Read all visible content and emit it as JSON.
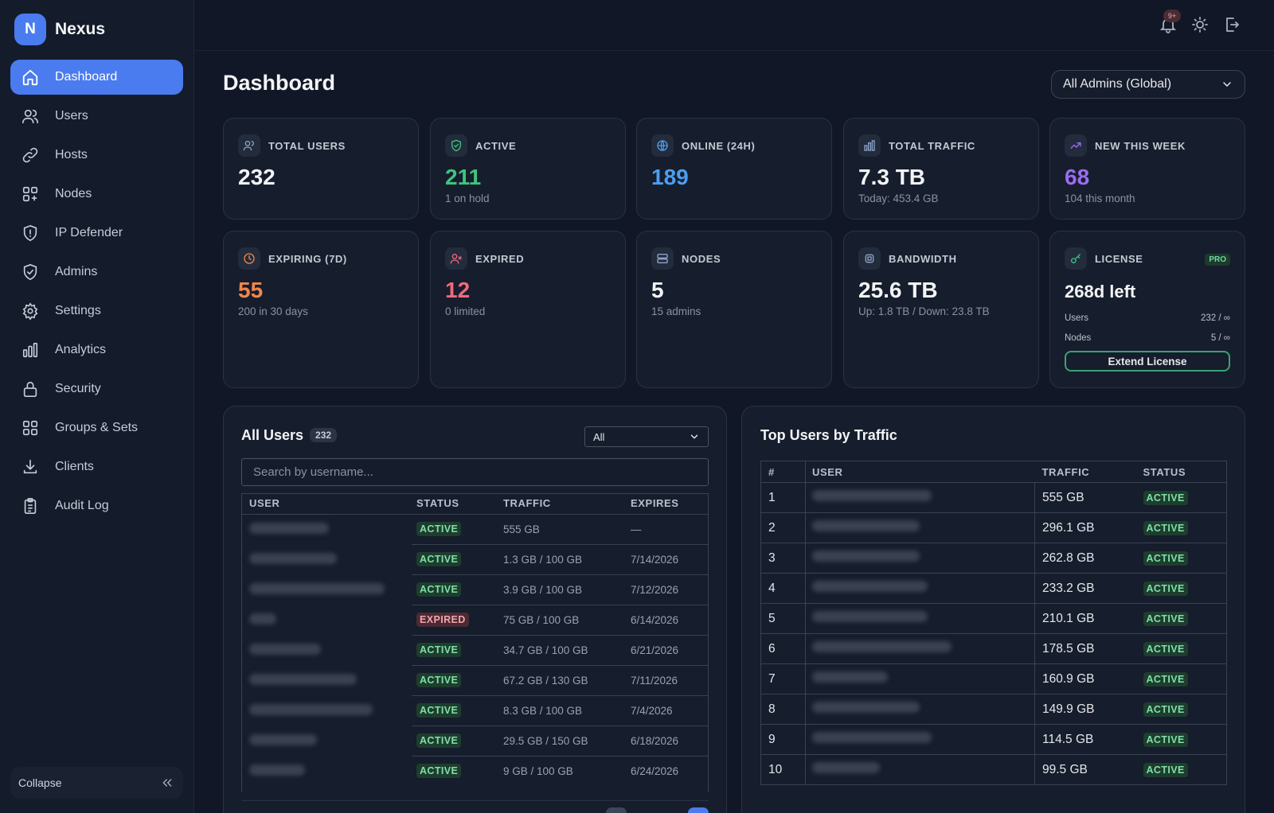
{
  "brand": {
    "initial": "N",
    "name": "Nexus"
  },
  "sidebar": {
    "items": [
      {
        "label": "Dashboard",
        "icon": "home-icon",
        "active": true
      },
      {
        "label": "Users",
        "icon": "users-icon"
      },
      {
        "label": "Hosts",
        "icon": "link-icon"
      },
      {
        "label": "Nodes",
        "icon": "nodes-icon"
      },
      {
        "label": "IP Defender",
        "icon": "shield-alert-icon"
      },
      {
        "label": "Admins",
        "icon": "shield-check-icon"
      },
      {
        "label": "Settings",
        "icon": "gear-icon"
      },
      {
        "label": "Analytics",
        "icon": "bar-chart-icon"
      },
      {
        "label": "Security",
        "icon": "lock-icon"
      },
      {
        "label": "Groups & Sets",
        "icon": "grid-icon"
      },
      {
        "label": "Clients",
        "icon": "download-icon"
      },
      {
        "label": "Audit Log",
        "icon": "clipboard-icon"
      }
    ],
    "collapse_label": "Collapse"
  },
  "topbar": {
    "notification_badge": "9+"
  },
  "main": {
    "title": "Dashboard",
    "admin_filter": "All Admins (Global)"
  },
  "colors": {
    "accent": "#4a7cf0",
    "green": "#3fc37e",
    "blue": "#4b9ef0",
    "purple": "#9b6cf0",
    "orange": "#f0874b",
    "red": "#f06a7c"
  },
  "stats": {
    "total_users": {
      "label": "TOTAL USERS",
      "value": "232"
    },
    "active": {
      "label": "ACTIVE",
      "value": "211",
      "sub": "1 on hold"
    },
    "online": {
      "label": "ONLINE (24H)",
      "value": "189"
    },
    "traffic": {
      "label": "TOTAL TRAFFIC",
      "value": "7.3 TB",
      "sub": "Today: 453.4 GB"
    },
    "new_week": {
      "label": "NEW THIS WEEK",
      "value": "68",
      "sub": "104 this month"
    },
    "expiring": {
      "label": "EXPIRING (7D)",
      "value": "55",
      "sub": "200 in 30 days"
    },
    "expired": {
      "label": "EXPIRED",
      "value": "12",
      "sub": "0 limited"
    },
    "nodes": {
      "label": "NODES",
      "value": "5",
      "sub": "15 admins"
    },
    "bandwidth": {
      "label": "BANDWIDTH",
      "value": "25.6 TB",
      "sub": "Up: 1.8 TB / Down: 23.8 TB"
    },
    "license": {
      "label": "LICENSE",
      "badge": "PRO",
      "value": "268d left",
      "users_label": "Users",
      "users_value": "232 / ∞",
      "nodes_label": "Nodes",
      "nodes_value": "5 / ∞",
      "button": "Extend License"
    }
  },
  "all_users": {
    "title": "All Users",
    "count": "232",
    "filter": "All",
    "search_placeholder": "Search by username...",
    "headers": [
      "USER",
      "STATUS",
      "TRAFFIC",
      "EXPIRES"
    ],
    "rows": [
      {
        "status": "ACTIVE",
        "traffic": "555 GB",
        "expires": "—"
      },
      {
        "status": "ACTIVE",
        "traffic": "1.3 GB / 100 GB",
        "expires": "7/14/2026"
      },
      {
        "status": "ACTIVE",
        "traffic": "3.9 GB / 100 GB",
        "expires": "7/12/2026"
      },
      {
        "status": "EXPIRED",
        "traffic": "75 GB / 100 GB",
        "expires": "6/14/2026"
      },
      {
        "status": "ACTIVE",
        "traffic": "34.7 GB / 100 GB",
        "expires": "6/21/2026"
      },
      {
        "status": "ACTIVE",
        "traffic": "67.2 GB / 130 GB",
        "expires": "7/11/2026"
      },
      {
        "status": "ACTIVE",
        "traffic": "8.3 GB / 100 GB",
        "expires": "7/4/2026"
      },
      {
        "status": "ACTIVE",
        "traffic": "29.5 GB / 150 GB",
        "expires": "6/18/2026"
      },
      {
        "status": "ACTIVE",
        "traffic": "9 GB / 100 GB",
        "expires": "6/24/2026"
      }
    ]
  },
  "top_users": {
    "title": "Top Users by Traffic",
    "headers": [
      "#",
      "USER",
      "TRAFFIC",
      "STATUS"
    ],
    "rows": [
      {
        "rank": "1",
        "traffic": "555 GB",
        "status": "ACTIVE"
      },
      {
        "rank": "2",
        "traffic": "296.1 GB",
        "status": "ACTIVE"
      },
      {
        "rank": "3",
        "traffic": "262.8 GB",
        "status": "ACTIVE"
      },
      {
        "rank": "4",
        "traffic": "233.2 GB",
        "status": "ACTIVE"
      },
      {
        "rank": "5",
        "traffic": "210.1 GB",
        "status": "ACTIVE"
      },
      {
        "rank": "6",
        "traffic": "178.5 GB",
        "status": "ACTIVE"
      },
      {
        "rank": "7",
        "traffic": "160.9 GB",
        "status": "ACTIVE"
      },
      {
        "rank": "8",
        "traffic": "149.9 GB",
        "status": "ACTIVE"
      },
      {
        "rank": "9",
        "traffic": "114.5 GB",
        "status": "ACTIVE"
      },
      {
        "rank": "10",
        "traffic": "99.5 GB",
        "status": "ACTIVE"
      }
    ]
  }
}
